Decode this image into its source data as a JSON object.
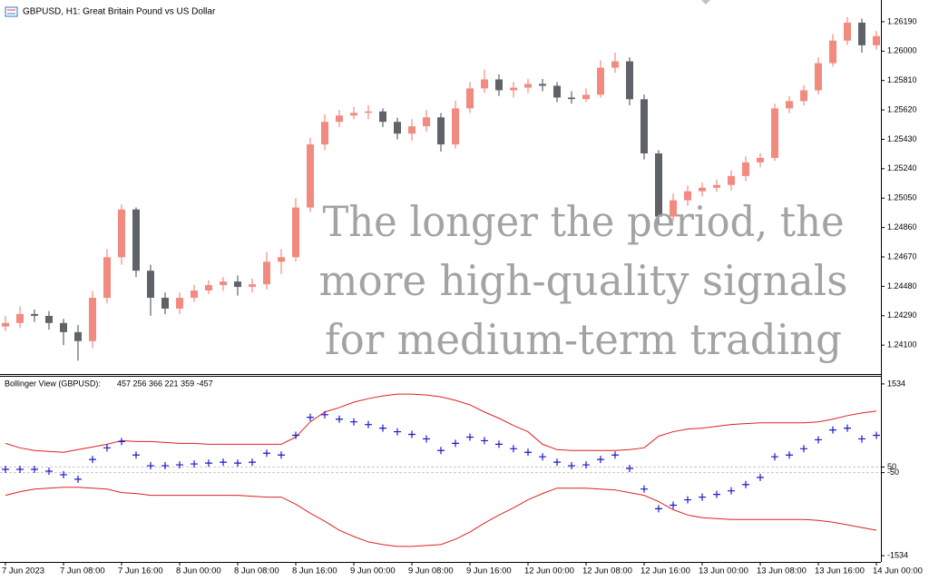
{
  "chart_data": [
    {
      "type": "candlestick",
      "title": "GBPUSD, H1:  Great Britain Pound vs US Dollar",
      "overlay_text": [
        "The longer the period, the",
        "more high-quality signals",
        "for medium-term trading"
      ],
      "up_color": "#f28a80",
      "down_color": "#5f6368",
      "open": [
        1.2422,
        1.24243,
        1.24301,
        1.24289,
        1.24243,
        1.24184,
        1.24126,
        1.24406,
        1.24668,
        1.24977,
        1.24581,
        1.24406,
        1.24336,
        1.24406,
        1.24453,
        1.24488,
        1.24511,
        1.24476,
        1.24493,
        1.24639,
        1.24668,
        1.24989,
        1.25397,
        1.25543,
        1.25584,
        1.25601,
        1.2561,
        1.25543,
        1.25467,
        1.25514,
        1.25572,
        1.25397,
        1.2563,
        1.25759,
        1.25817,
        1.25747,
        1.25764,
        1.25788,
        1.25776,
        1.257,
        1.2569,
        1.25718,
        1.25893,
        1.25934,
        1.25689,
        1.25339,
        1.24931,
        1.25036,
        1.25094,
        1.25117,
        1.25135,
        1.25193,
        1.25281,
        1.2531,
        1.2563,
        1.25677,
        1.25747,
        1.25922,
        1.26068,
        1.26184,
        1.26038
      ],
      "high": [
        1.2429,
        1.2435,
        1.2433,
        1.2432,
        1.2427,
        1.2423,
        1.2445,
        1.2472,
        1.2501,
        1.2499,
        1.2462,
        1.2444,
        1.2444,
        1.2449,
        1.2452,
        1.2454,
        1.2455,
        1.2453,
        1.247,
        1.2472,
        1.2505,
        1.2544,
        1.2559,
        1.2562,
        1.2564,
        1.2565,
        1.2563,
        1.2557,
        1.2556,
        1.2562,
        1.256,
        1.2568,
        1.258,
        1.2588,
        1.2585,
        1.258,
        1.2582,
        1.2582,
        1.258,
        1.2574,
        1.2576,
        1.2594,
        1.2599,
        1.2596,
        1.2572,
        1.2536,
        1.2508,
        1.2513,
        1.2515,
        1.2517,
        1.2523,
        1.2532,
        1.2534,
        1.2566,
        1.2571,
        1.2578,
        1.2596,
        1.2611,
        1.2622,
        1.2621,
        1.2613
      ],
      "low": [
        1.2419,
        1.2421,
        1.2425,
        1.242,
        1.241,
        1.24,
        1.2408,
        1.2437,
        1.2462,
        1.2454,
        1.2429,
        1.243,
        1.243,
        1.2438,
        1.2443,
        1.2445,
        1.2442,
        1.2444,
        1.2446,
        1.2456,
        1.2464,
        1.2496,
        1.2536,
        1.2551,
        1.2556,
        1.2556,
        1.2551,
        1.2543,
        1.2542,
        1.2548,
        1.2535,
        1.2537,
        1.256,
        1.2573,
        1.2571,
        1.257,
        1.2573,
        1.2574,
        1.2567,
        1.2566,
        1.2567,
        1.257,
        1.2586,
        1.2565,
        1.253,
        1.2488,
        1.249,
        1.25,
        1.2506,
        1.2509,
        1.251,
        1.2516,
        1.2525,
        1.2529,
        1.256,
        1.2565,
        1.2572,
        1.259,
        1.2604,
        1.2599,
        1.2601
      ],
      "close": [
        1.24243,
        1.24301,
        1.24289,
        1.24243,
        1.24184,
        1.24126,
        1.24406,
        1.24668,
        1.24977,
        1.24581,
        1.24406,
        1.24336,
        1.24406,
        1.24453,
        1.24488,
        1.24511,
        1.24476,
        1.24493,
        1.24639,
        1.24668,
        1.24989,
        1.25397,
        1.25543,
        1.25584,
        1.25601,
        1.2561,
        1.25543,
        1.25467,
        1.25514,
        1.25572,
        1.25397,
        1.2563,
        1.25759,
        1.25817,
        1.25747,
        1.25764,
        1.25788,
        1.25776,
        1.257,
        1.2569,
        1.25718,
        1.25893,
        1.25934,
        1.25689,
        1.25339,
        1.24931,
        1.25036,
        1.25094,
        1.25117,
        1.25135,
        1.25193,
        1.25281,
        1.2531,
        1.2563,
        1.25677,
        1.25747,
        1.25922,
        1.26068,
        1.26184,
        1.26038,
        1.26097
      ],
      "ylim": [
        1.23925,
        1.26301
      ],
      "yticks": [
        {
          "value": 1.2619,
          "label": "1.26190"
        },
        {
          "value": 1.26,
          "label": "1.26000"
        },
        {
          "value": 1.2581,
          "label": "1.25810"
        },
        {
          "value": 1.2562,
          "label": "1.25620"
        },
        {
          "value": 1.2543,
          "label": "1.25430"
        },
        {
          "value": 1.2524,
          "label": "1.25240"
        },
        {
          "value": 1.2505,
          "label": "1.25050"
        },
        {
          "value": 1.2486,
          "label": "1.24860"
        },
        {
          "value": 1.2467,
          "label": "1.24670"
        },
        {
          "value": 1.2448,
          "label": "1.24480"
        },
        {
          "value": 1.2429,
          "label": "1.24290"
        },
        {
          "value": 1.241,
          "label": "1.24100"
        }
      ]
    },
    {
      "type": "line",
      "title": "Bollinger View (GBPUSD):",
      "subtitle": "457 256 366 221 359 -457",
      "categories": [
        "7 Jun 2023",
        null,
        null,
        null,
        "7 Jun 08:00",
        null,
        null,
        null,
        "7 Jun 16:00",
        null,
        null,
        null,
        "8 Jun 00:00",
        null,
        null,
        null,
        "8 Jun 08:00",
        null,
        null,
        null,
        "8 Jun 16:00",
        null,
        null,
        null,
        "9 Jun 00:00",
        null,
        null,
        null,
        "9 Jun 08:00",
        null,
        null,
        null,
        "9 Jun 16:00",
        null,
        null,
        null,
        "12 Jun 00:00",
        null,
        null,
        null,
        "12 Jun 08:00",
        null,
        null,
        null,
        "12 Jun 16:00",
        null,
        null,
        null,
        "13 Jun 00:00",
        null,
        null,
        null,
        "13 Jun 08:00",
        null,
        null,
        null,
        "13 Jun 16:00",
        null,
        null,
        null,
        "14 Jun 00:00"
      ],
      "series": [
        {
          "color": "#e02020",
          "style": "line",
          "values": [
            472,
            392,
            344,
            328,
            312,
            360,
            408,
            456,
            520,
            504,
            504,
            488,
            472,
            472,
            456,
            456,
            456,
            456,
            456,
            456,
            584,
            856,
            1032,
            1112,
            1208,
            1272,
            1320,
            1352,
            1352,
            1336,
            1304,
            1240,
            1160,
            1032,
            920,
            792,
            680,
            456,
            360,
            344,
            344,
            344,
            344,
            360,
            392,
            600,
            680,
            728,
            744,
            776,
            808,
            824,
            840,
            840,
            840,
            840,
            856,
            904,
            968,
            1016,
            1048
          ]
        },
        {
          "color": "#e02020",
          "style": "line",
          "values": [
            -456,
            -392,
            -344,
            -328,
            -312,
            -312,
            -328,
            -344,
            -408,
            -424,
            -456,
            -456,
            -456,
            -456,
            -456,
            -456,
            -456,
            -472,
            -488,
            -488,
            -616,
            -776,
            -920,
            -1080,
            -1192,
            -1288,
            -1336,
            -1368,
            -1368,
            -1352,
            -1336,
            -1240,
            -1112,
            -952,
            -808,
            -680,
            -536,
            -424,
            -328,
            -328,
            -328,
            -344,
            -360,
            -408,
            -456,
            -568,
            -712,
            -808,
            -856,
            -872,
            -888,
            -888,
            -888,
            -888,
            -888,
            -888,
            -904,
            -936,
            -984,
            -1032,
            -1080
          ]
        },
        {
          "color": "#1a1acc",
          "style": "marker",
          "values": [
            8,
            8,
            8,
            -24,
            -88,
            -168,
            184,
            392,
            504,
            264,
            72,
            72,
            88,
            104,
            120,
            136,
            120,
            136,
            296,
            264,
            616,
            936,
            984,
            904,
            856,
            808,
            744,
            680,
            632,
            552,
            344,
            472,
            584,
            520,
            456,
            376,
            312,
            232,
            136,
            72,
            88,
            184,
            264,
            24,
            -344,
            -696,
            -632,
            -536,
            -488,
            -440,
            -376,
            -264,
            -136,
            232,
            264,
            376,
            536,
            712,
            744,
            552,
            616
          ]
        }
      ],
      "levels": [
        50,
        -50
      ],
      "ylim": [
        -1630,
        1646
      ],
      "yticks": [
        1534,
        50,
        -50,
        -1534
      ]
    }
  ]
}
